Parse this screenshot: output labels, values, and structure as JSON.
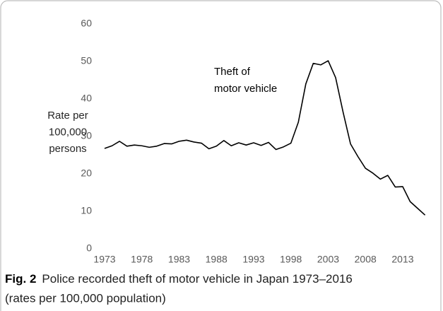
{
  "chart_data": {
    "type": "line",
    "ylabel_lines": [
      "Rate per",
      "100,000",
      "persons"
    ],
    "annotation_lines": [
      "Theft of",
      "motor vehicle"
    ],
    "caption_label": "Fig. 2",
    "caption": [
      "Police recorded theft of motor vehicle in Japan 1973–2016",
      "(rates per 100,000 population)"
    ],
    "x": [
      1973,
      1974,
      1975,
      1976,
      1977,
      1978,
      1979,
      1980,
      1981,
      1982,
      1983,
      1984,
      1985,
      1986,
      1987,
      1988,
      1989,
      1990,
      1991,
      1992,
      1993,
      1994,
      1995,
      1996,
      1997,
      1998,
      1999,
      2000,
      2001,
      2002,
      2003,
      2004,
      2005,
      2006,
      2007,
      2008,
      2009,
      2010,
      2011,
      2012,
      2013,
      2014,
      2015,
      2016
    ],
    "series": [
      {
        "name": "Theft of motor vehicle",
        "color": "#000000",
        "values": [
          26.8,
          27.5,
          28.7,
          27.4,
          27.7,
          27.5,
          27.1,
          27.4,
          28.1,
          28.0,
          28.7,
          29.0,
          28.5,
          28.2,
          26.7,
          27.4,
          28.9,
          27.5,
          28.3,
          27.7,
          28.3,
          27.6,
          28.4,
          26.5,
          27.2,
          28.2,
          33.8,
          44.0,
          49.5,
          49.1,
          50.2,
          45.7,
          36.5,
          28.0,
          24.6,
          21.5,
          20.2,
          18.6,
          19.6,
          16.5,
          16.6,
          12.6,
          10.8,
          9.0
        ]
      }
    ],
    "xlim": [
      1973,
      2016
    ],
    "xticks": [
      1973,
      1978,
      1983,
      1988,
      1993,
      1998,
      2003,
      2008,
      2013
    ],
    "ylim": [
      0,
      60
    ],
    "yticks": [
      0,
      10,
      20,
      30,
      40,
      50,
      60
    ],
    "grid": false
  }
}
